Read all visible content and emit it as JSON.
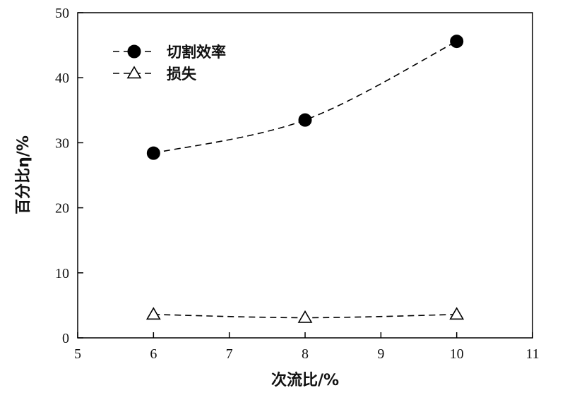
{
  "chart_data": {
    "type": "line",
    "title": "",
    "xlabel": "次流比/%",
    "ylabel": "百分比η/%",
    "xlim": [
      5,
      11
    ],
    "ylim": [
      0,
      50
    ],
    "xticks": [
      5,
      6,
      7,
      8,
      9,
      10,
      11
    ],
    "yticks": [
      0,
      10,
      20,
      30,
      40,
      50
    ],
    "grid": false,
    "legend_position": "top-left",
    "x": [
      6,
      8,
      10
    ],
    "series": [
      {
        "name": "切割效率",
        "marker": "filled-circle",
        "line_style": "dashed",
        "color": "#000000",
        "values": [
          28.4,
          33.5,
          45.6
        ]
      },
      {
        "name": "损失",
        "marker": "open-triangle",
        "line_style": "dashed",
        "color": "#000000",
        "values": [
          3.6,
          3.1,
          3.6
        ]
      }
    ]
  }
}
